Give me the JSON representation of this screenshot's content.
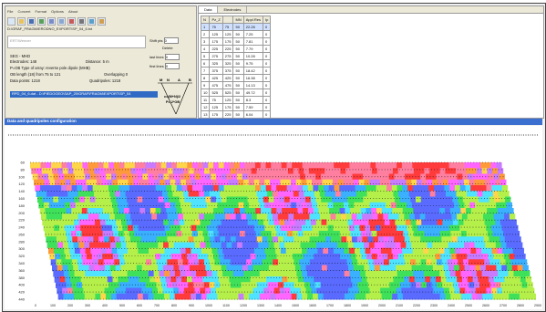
{
  "menu": [
    "File",
    "Convert",
    "Format",
    "Options",
    "About"
  ],
  "toolbar_icons": [
    {
      "name": "new-icon",
      "color": "#d9e7f7"
    },
    {
      "name": "open-icon",
      "color": "#e8c25a"
    },
    {
      "name": "save-icon",
      "color": "#4a6fb0"
    },
    {
      "name": "chart-icon",
      "color": "#5aa05a"
    },
    {
      "name": "grid-icon",
      "color": "#7b8cc9"
    },
    {
      "name": "table-icon",
      "color": "#8aa7d0"
    },
    {
      "name": "sort-icon",
      "color": "#c95a5a"
    },
    {
      "name": "settings-icon",
      "color": "#777777"
    },
    {
      "name": "export-icon",
      "color": "#5aa0c9"
    },
    {
      "name": "help-icon",
      "color": "#d0a050"
    }
  ],
  "path": "D:\\GRAF_FRAGM\\ERODNO_EXPORT\\SP_04_6.txt",
  "file_info": "ERT/Wenner",
  "shift_label": "Shift pts",
  "shift_value": "0",
  "delete_label": "Delete",
  "last_lines_label": "last lines",
  "last_lines_value": "0",
  "first_lines_label": "first lines",
  "first_lines_value": "0",
  "params": {
    "seg": "SEG - MHD",
    "electrodes": "Electrodes:   148",
    "distance": "Distance:  5 m",
    "array": "P=OB    Type of array:  reverse pole dipole (MHB)",
    "oblength": "OB length    (18) from 75 to 121",
    "overlapping": "Overlapping   0",
    "datapoints": "Data points:  1218",
    "quadripoles": "Quadripoles:   1218"
  },
  "selected_file": "RPD_04_6.dat - D:\\PIEDOGEO\\SAP_20\\GRAF\\FRAGM\\EXPORT\\SP_04",
  "diagram_text": {
    "m": "M",
    "n": "N",
    "a": "A",
    "b": "B",
    "formula1": "c=(M+N)/2",
    "formula2": "P= 2*OB"
  },
  "tabs": [
    "Data",
    "Electrodes"
  ],
  "table": {
    "headers": [
      "N",
      "Pz_Z",
      "",
      "MN",
      "Appl.Res",
      "Ip"
    ],
    "rows": [
      [
        "1",
        "75",
        "75",
        "50",
        "22.28",
        "0"
      ],
      [
        "2",
        "125",
        "125",
        "50",
        "7.25",
        "0"
      ],
      [
        "3",
        "175",
        "175",
        "50",
        "7.81",
        "0"
      ],
      [
        "4",
        "225",
        "225",
        "50",
        "7.79",
        "0"
      ],
      [
        "5",
        "275",
        "275",
        "50",
        "10.28",
        "0"
      ],
      [
        "6",
        "325",
        "325",
        "50",
        "9.75",
        "0"
      ],
      [
        "7",
        "375",
        "375",
        "50",
        "18.42",
        "0"
      ],
      [
        "8",
        "425",
        "425",
        "50",
        "16.38",
        "0"
      ],
      [
        "9",
        "475",
        "475",
        "50",
        "14.13",
        "0"
      ],
      [
        "10",
        "525",
        "525",
        "50",
        "49.72",
        "0"
      ],
      [
        "11",
        "75",
        "125",
        "50",
        "8.3",
        "0"
      ],
      [
        "12",
        "125",
        "175",
        "50",
        "7.59",
        "0"
      ],
      [
        "13",
        "175",
        "225",
        "50",
        "6.04",
        "0"
      ]
    ]
  },
  "bottom_title": "Data and quadripoles configuration",
  "plot": {
    "y_ticks": [
      "60",
      "80",
      "100",
      "120",
      "140",
      "160",
      "180",
      "200",
      "220",
      "240",
      "260",
      "280",
      "300",
      "320",
      "340",
      "360",
      "380",
      "400",
      "420",
      "440"
    ],
    "x_ticks": [
      "0",
      "100",
      "200",
      "300",
      "400",
      "500",
      "600",
      "700",
      "800",
      "900",
      "1000",
      "1100",
      "1200",
      "1300",
      "1400",
      "1500",
      "1600",
      "1700",
      "1800",
      "1900",
      "2000",
      "2100",
      "2200",
      "2300",
      "2400",
      "2500",
      "2600",
      "2700",
      "2800",
      "2900"
    ]
  }
}
